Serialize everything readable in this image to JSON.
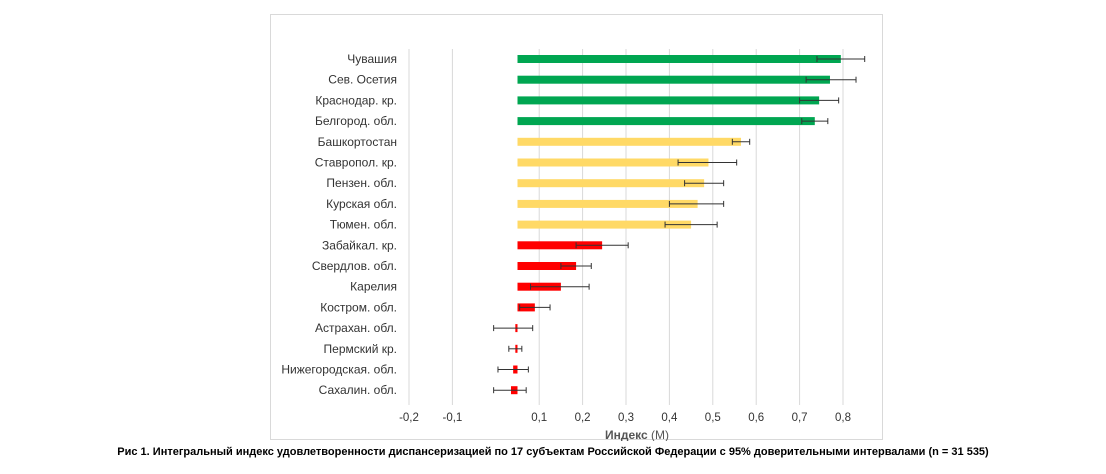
{
  "chart_data": {
    "type": "bar",
    "orientation": "horizontal",
    "categories": [
      "Чувашия",
      "Сев. Осетия",
      "Краснодар. кр.",
      "Белгород. обл.",
      "Башкортостан",
      "Ставропол. кр.",
      "Пензен. обл.",
      "Курская обл.",
      "Тюмен. обл.",
      "Забайкал. кр.",
      "Свердлов. обл.",
      "Карелия",
      "Костром. обл.",
      "Астрахан. обл.",
      "Пермский кр.",
      "Нижегородская. обл.",
      "Сахалин. обл."
    ],
    "values": [
      0.795,
      0.77,
      0.745,
      0.735,
      0.565,
      0.49,
      0.48,
      0.465,
      0.45,
      0.245,
      0.185,
      0.15,
      0.09,
      0.045,
      0.045,
      0.04,
      0.035
    ],
    "ci_low": [
      0.74,
      0.715,
      0.7,
      0.705,
      0.545,
      0.42,
      0.435,
      0.4,
      0.39,
      0.185,
      0.15,
      0.08,
      0.055,
      -0.005,
      0.03,
      0.005,
      -0.005
    ],
    "ci_high": [
      0.85,
      0.83,
      0.79,
      0.765,
      0.585,
      0.555,
      0.525,
      0.525,
      0.51,
      0.305,
      0.22,
      0.215,
      0.125,
      0.085,
      0.06,
      0.075,
      0.07
    ],
    "baseline": 0.05,
    "colors": [
      "#00a651",
      "#00a651",
      "#00a651",
      "#00a651",
      "#ffd966",
      "#ffd966",
      "#ffd966",
      "#ffd966",
      "#ffd966",
      "#ff0000",
      "#ff0000",
      "#ff0000",
      "#ff0000",
      "#ff0000",
      "#ff0000",
      "#ff0000",
      "#ff0000"
    ],
    "xlim": [
      -0.2,
      0.8
    ],
    "xticks": [
      -0.2,
      -0.1,
      0.1,
      0.2,
      0.3,
      0.4,
      0.5,
      0.6,
      0.7,
      0.8
    ],
    "xtick_labels": [
      "-0,2",
      "-0,1",
      "0,1",
      "0,2",
      "0,3",
      "0,4",
      "0,5",
      "0,6",
      "0,7",
      "0,8"
    ],
    "xlabel_bold": "Индекс",
    "xlabel_rest": " (М)",
    "grid": true
  },
  "caption": "Рис 1. Интегральный индекс удовлетворенности диспансеризацией по 17 субъектам Российской Федерации с 95% доверительными интервалами (n = 31 535)"
}
